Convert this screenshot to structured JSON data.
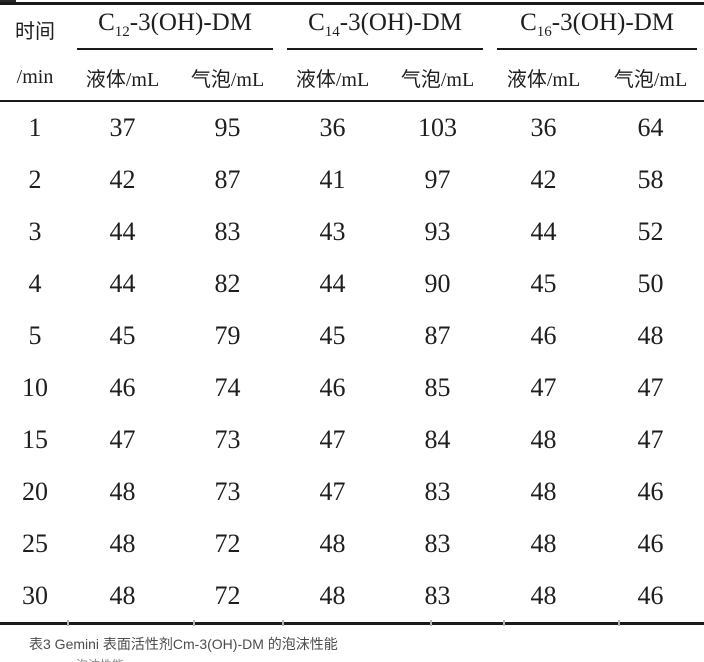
{
  "page": {
    "caption": "表3 Gemini 表面活性剂Cm-3(OH)-DM 的泡沫性能",
    "partial_next_line": "泡沫性能"
  },
  "table": {
    "time_header": "时间",
    "time_unit": "/min",
    "groups": [
      {
        "prefix": "C",
        "sub": "12",
        "suffix": "-3(OH)-DM"
      },
      {
        "prefix": "C",
        "sub": "14",
        "suffix": "-3(OH)-DM"
      },
      {
        "prefix": "C",
        "sub": "16",
        "suffix": "-3(OH)-DM"
      }
    ],
    "subheaders": [
      "液体/mL",
      "气泡/mL",
      "液体/mL",
      "气泡/mL",
      "液体/mL",
      "气泡/mL"
    ],
    "rows": [
      {
        "time": "1",
        "values": [
          "37",
          "95",
          "36",
          "103",
          "36",
          "64"
        ]
      },
      {
        "time": "2",
        "values": [
          "42",
          "87",
          "41",
          "97",
          "42",
          "58"
        ]
      },
      {
        "time": "3",
        "values": [
          "44",
          "83",
          "43",
          "93",
          "44",
          "52"
        ]
      },
      {
        "time": "4",
        "values": [
          "44",
          "82",
          "44",
          "90",
          "45",
          "50"
        ]
      },
      {
        "time": "5",
        "values": [
          "45",
          "79",
          "45",
          "87",
          "46",
          "48"
        ]
      },
      {
        "time": "10",
        "values": [
          "46",
          "74",
          "46",
          "85",
          "47",
          "47"
        ]
      },
      {
        "time": "15",
        "values": [
          "47",
          "73",
          "47",
          "84",
          "48",
          "47"
        ]
      },
      {
        "time": "20",
        "values": [
          "48",
          "73",
          "47",
          "83",
          "48",
          "46"
        ]
      },
      {
        "time": "25",
        "values": [
          "48",
          "72",
          "48",
          "83",
          "48",
          "46"
        ]
      },
      {
        "time": "30",
        "values": [
          "48",
          "72",
          "48",
          "83",
          "48",
          "46"
        ]
      }
    ]
  },
  "colors": {
    "rule": "#1a1a1a",
    "text": "#1e1e1e",
    "caption": "#4d4d4d",
    "background": "#ffffff"
  }
}
